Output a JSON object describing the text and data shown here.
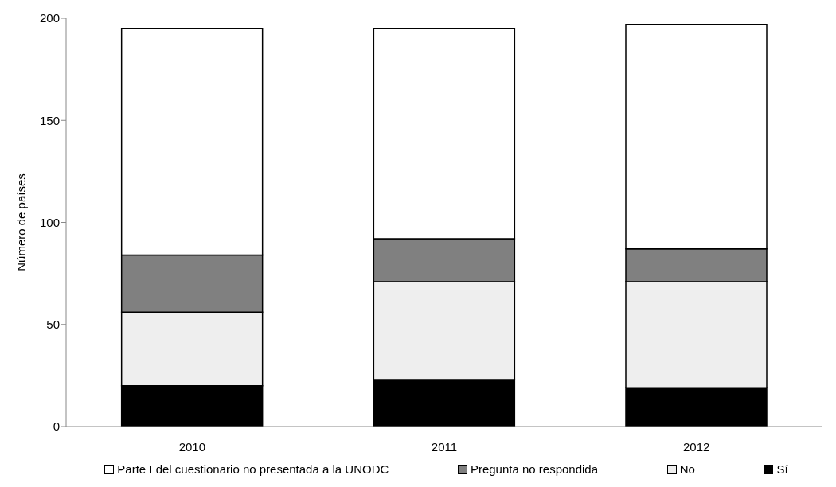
{
  "chart_data": {
    "type": "bar",
    "stacked": true,
    "ylabel": "Número de países",
    "categories": [
      "2010",
      "2011",
      "2012"
    ],
    "series": [
      {
        "name": "Sí",
        "color": "#000000",
        "values": [
          20,
          23,
          19
        ]
      },
      {
        "name": "No",
        "color": "#eeeeee",
        "values": [
          36,
          48,
          52
        ]
      },
      {
        "name": "Pregunta no respondida",
        "color": "#808080",
        "values": [
          28,
          21,
          16
        ]
      },
      {
        "name": "Parte I del cuestionario no presentada a la UNODC",
        "color": "#ffffff",
        "values": [
          111,
          103,
          110
        ]
      }
    ],
    "ylim": [
      0,
      200
    ],
    "yticks": [
      0,
      50,
      100,
      150,
      200
    ],
    "grid": false,
    "legend": "bottom"
  }
}
